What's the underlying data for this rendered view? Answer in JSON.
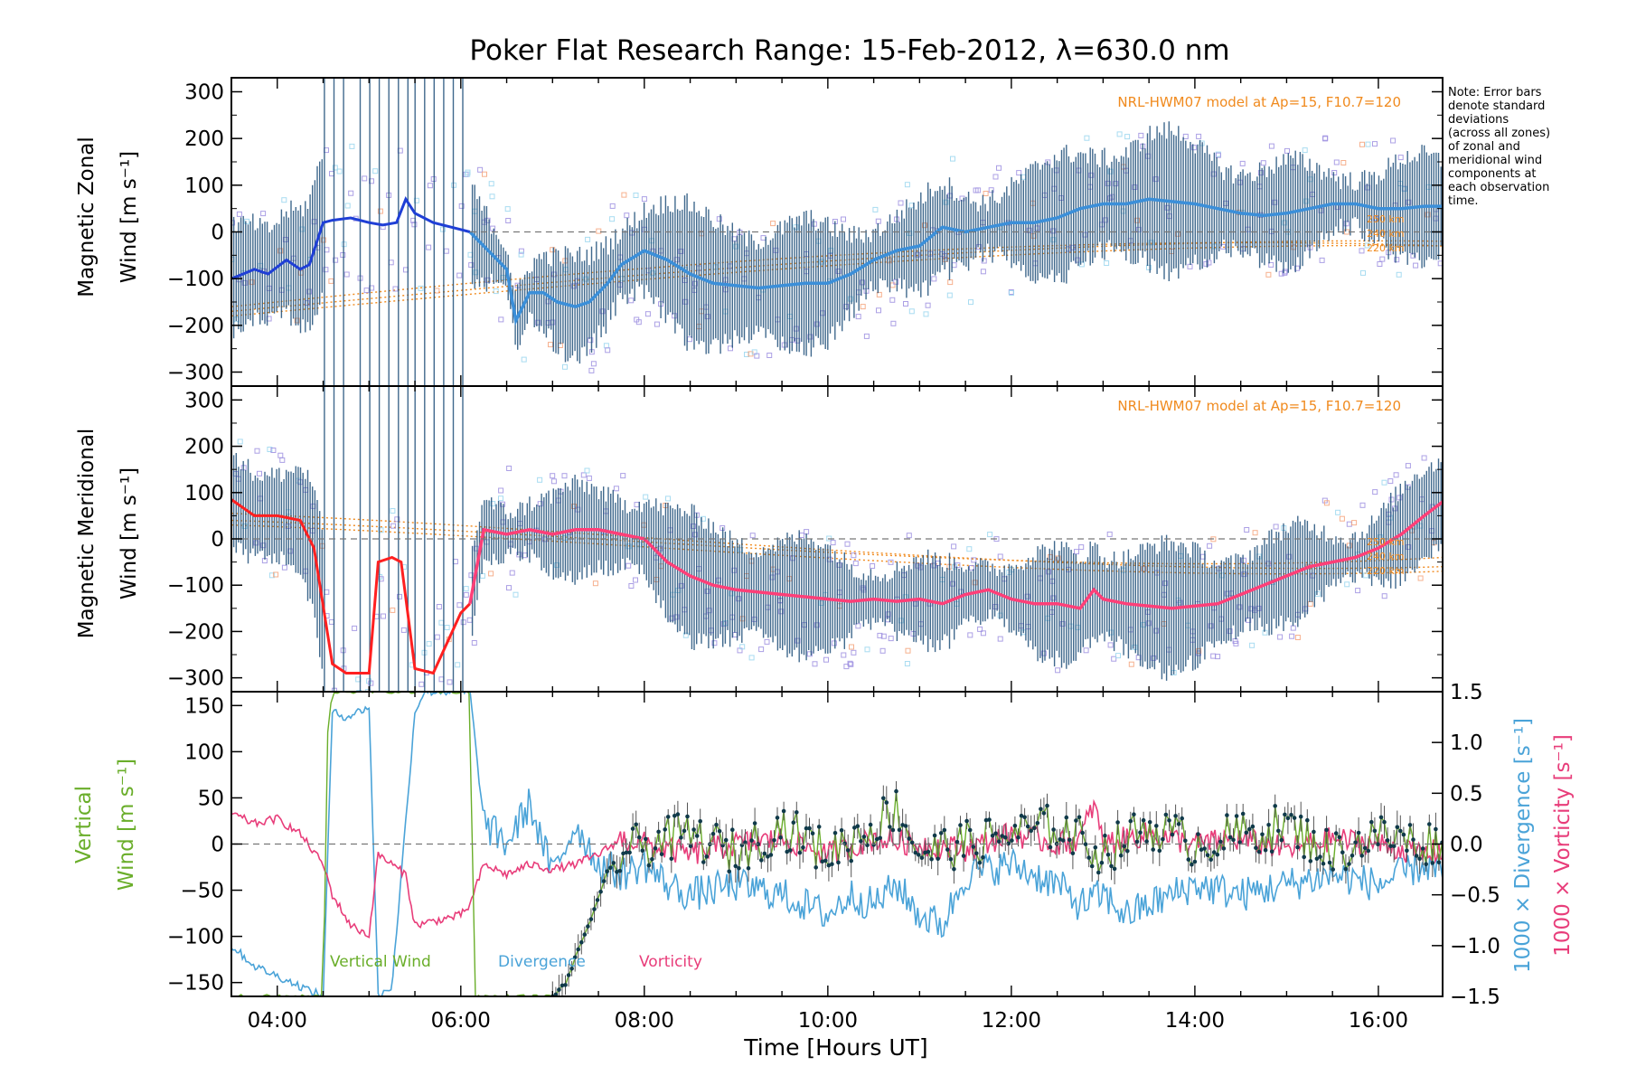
{
  "title": "Poker Flat Research Range: 15-Feb-2012, λ=630.0 nm",
  "note_lines": [
    "Note: Error bars",
    "denote standard",
    "deviations",
    "(across all zones)",
    "of zonal and",
    "meridional wind",
    "components at",
    "each observation",
    "time."
  ],
  "colors": {
    "zonal": "#3b8fd9",
    "zonal_early": "#1f3fd6",
    "meridional": "#ff3f78",
    "meridional_early": "#ff2020",
    "errorbar": "#1f4f7a",
    "scatter": "#9d8fe0",
    "model": "#f08a1e",
    "vertical": "#6aae2a",
    "divergence": "#4aa3d8",
    "vorticity": "#e83d7a"
  },
  "chart_data": [
    {
      "type": "line",
      "name": "zonal",
      "ylabel": [
        "Magnetic Zonal",
        "Wind [m s⁻¹]"
      ],
      "ylim": [
        -330,
        330
      ],
      "yticks": [
        -300,
        -200,
        -100,
        0,
        100,
        200,
        300
      ],
      "xlim": [
        3.5,
        16.7
      ],
      "model_label": "NRL-HWM07 model at Ap=15, F10.7=120",
      "model_heights": [
        "250 km",
        "240 km",
        "220 km"
      ],
      "x": [
        3.5,
        3.75,
        3.9,
        4.1,
        4.25,
        4.35,
        4.5,
        4.6,
        4.8,
        5.0,
        5.15,
        5.3,
        5.4,
        5.5,
        5.7,
        5.9,
        6.1,
        6.3,
        6.5,
        6.6,
        6.75,
        6.9,
        7.05,
        7.25,
        7.4,
        7.6,
        7.75,
        8.0,
        8.25,
        8.5,
        8.75,
        9.0,
        9.25,
        9.5,
        9.75,
        10.0,
        10.25,
        10.5,
        10.75,
        11.0,
        11.25,
        11.5,
        11.75,
        12.0,
        12.25,
        12.5,
        12.75,
        13.0,
        13.25,
        13.5,
        13.75,
        14.0,
        14.25,
        14.5,
        14.75,
        15.0,
        15.25,
        15.5,
        15.75,
        16.0,
        16.25,
        16.5,
        16.7
      ],
      "values": [
        -100,
        -80,
        -90,
        -60,
        -80,
        -70,
        20,
        25,
        30,
        20,
        15,
        20,
        70,
        40,
        20,
        10,
        0,
        -40,
        -80,
        -190,
        -130,
        -130,
        -150,
        -160,
        -150,
        -110,
        -70,
        -40,
        -60,
        -90,
        -110,
        -115,
        -120,
        -115,
        -110,
        -110,
        -90,
        -60,
        -40,
        -30,
        10,
        0,
        10,
        20,
        20,
        30,
        50,
        60,
        60,
        70,
        65,
        60,
        50,
        40,
        35,
        40,
        50,
        60,
        60,
        50,
        50,
        55,
        55
      ],
      "spread": 130
    },
    {
      "type": "line",
      "name": "meridional",
      "ylabel": [
        "Magnetic Meridional",
        "Wind [m s⁻¹]"
      ],
      "ylim": [
        -330,
        330
      ],
      "yticks": [
        -300,
        -200,
        -100,
        0,
        100,
        200,
        300
      ],
      "xlim": [
        3.5,
        16.7
      ],
      "model_label": "NRL-HWM07 model at Ap=15, F10.7=120",
      "model_heights": [
        "250 km",
        "240 km",
        "220 km"
      ],
      "x": [
        3.5,
        3.75,
        4.0,
        4.25,
        4.4,
        4.6,
        4.75,
        5.0,
        5.1,
        5.25,
        5.35,
        5.5,
        5.7,
        6.0,
        6.1,
        6.25,
        6.5,
        6.75,
        7.0,
        7.25,
        7.5,
        7.75,
        8.0,
        8.25,
        8.5,
        8.75,
        9.0,
        9.25,
        9.5,
        9.75,
        10.0,
        10.25,
        10.5,
        10.75,
        11.0,
        11.25,
        11.5,
        11.75,
        12.0,
        12.25,
        12.5,
        12.75,
        12.9,
        13.0,
        13.25,
        13.5,
        13.75,
        14.0,
        14.25,
        14.5,
        14.75,
        15.0,
        15.25,
        15.5,
        15.75,
        16.0,
        16.25,
        16.5,
        16.7
      ],
      "values": [
        85,
        50,
        50,
        40,
        -20,
        -270,
        -290,
        -290,
        -50,
        -40,
        -50,
        -280,
        -290,
        -160,
        -140,
        20,
        10,
        20,
        10,
        20,
        20,
        10,
        0,
        -50,
        -80,
        -100,
        -110,
        -115,
        -120,
        -125,
        -130,
        -135,
        -130,
        -135,
        -130,
        -140,
        -120,
        -110,
        -130,
        -140,
        -140,
        -150,
        -110,
        -130,
        -140,
        -145,
        -150,
        -145,
        -140,
        -120,
        -100,
        -80,
        -60,
        -50,
        -40,
        -20,
        10,
        50,
        80
      ],
      "spread": 120
    },
    {
      "type": "line",
      "name": "kinematics",
      "ylabel": [
        "Vertical",
        "Wind [m s⁻¹]"
      ],
      "ylim": [
        -165,
        165
      ],
      "yticks": [
        -150,
        -100,
        -50,
        0,
        50,
        100,
        150
      ],
      "y2label_div": "1000 × Divergence [s⁻¹]",
      "y2label_vor": "1000 × Vorticity [s⁻¹]",
      "y2ticks": [
        "1.5",
        "1.0",
        "0.5",
        "0.0",
        "−0.5",
        "−1.0",
        "−1.5"
      ],
      "xlim": [
        3.5,
        16.7
      ],
      "xlabel": "Time [Hours UT]",
      "xticks": [
        "04:00",
        "06:00",
        "08:00",
        "10:00",
        "12:00",
        "14:00",
        "16:00"
      ],
      "series_labels": [
        "Vertical Wind",
        "Divergence",
        "Vorticity"
      ],
      "vertical": {
        "x": [
          4.5,
          4.55,
          4.6,
          4.7,
          4.85,
          5.0,
          5.1,
          5.4,
          5.5,
          5.75,
          6.0,
          6.1,
          6.15,
          7.0,
          7.15,
          7.3,
          7.5,
          7.6,
          7.75,
          8.0,
          8.5,
          9.0,
          9.5,
          10.0,
          10.5,
          10.75,
          11.0,
          11.5,
          12.0,
          12.5,
          13.0,
          13.5,
          14.0,
          14.5,
          15.0,
          15.5,
          16.0,
          16.5,
          16.7
        ],
        "values": [
          -165,
          120,
          165,
          165,
          165,
          165,
          165,
          165,
          165,
          165,
          165,
          165,
          -165,
          -165,
          -150,
          -110,
          -60,
          -30,
          -10,
          0,
          10,
          -10,
          20,
          -10,
          20,
          40,
          -10,
          0,
          10,
          20,
          -10,
          20,
          0,
          10,
          20,
          -10,
          10,
          0,
          5
        ]
      },
      "divergence": {
        "x": [
          3.5,
          3.75,
          4.0,
          4.25,
          4.5,
          4.6,
          4.75,
          5.0,
          5.1,
          5.25,
          5.5,
          5.6,
          5.75,
          6.0,
          6.1,
          6.25,
          6.5,
          6.75,
          7.0,
          7.25,
          7.5,
          7.75,
          8.0,
          8.25,
          8.5,
          9.0,
          9.5,
          10.0,
          10.25,
          10.5,
          10.75,
          11.0,
          11.25,
          11.5,
          12.0,
          12.5,
          12.75,
          13.0,
          13.25,
          13.5,
          14.0,
          14.5,
          15.0,
          15.5,
          16.0,
          16.5,
          16.7
        ],
        "values": [
          -1.0,
          -1.2,
          -1.3,
          -1.4,
          -1.5,
          1.3,
          1.25,
          1.35,
          -1.5,
          -1.4,
          1.3,
          1.5,
          1.5,
          1.5,
          1.5,
          0.2,
          0.0,
          0.4,
          -0.3,
          0.2,
          -0.2,
          -0.3,
          -0.2,
          -0.4,
          -0.5,
          -0.4,
          -0.5,
          -0.7,
          -0.5,
          -0.6,
          -0.4,
          -0.7,
          -0.8,
          -0.3,
          -0.2,
          -0.4,
          -0.6,
          -0.5,
          -0.7,
          -0.6,
          -0.4,
          -0.5,
          -0.4,
          -0.3,
          -0.4,
          -0.2,
          -0.3
        ]
      },
      "vorticity": {
        "x": [
          3.5,
          3.75,
          4.0,
          4.25,
          4.5,
          4.6,
          4.8,
          5.0,
          5.1,
          5.25,
          5.4,
          5.5,
          5.75,
          6.0,
          6.1,
          6.25,
          6.5,
          6.75,
          7.0,
          7.25,
          7.5,
          7.75,
          8.0,
          8.5,
          9.0,
          9.5,
          10.0,
          10.5,
          11.0,
          11.5,
          12.0,
          12.5,
          12.75,
          12.9,
          13.0,
          13.5,
          14.0,
          14.5,
          15.0,
          15.5,
          16.0,
          16.5,
          16.7
        ],
        "values": [
          0.3,
          0.2,
          0.25,
          0.1,
          -0.2,
          -0.5,
          -0.8,
          -0.9,
          -0.1,
          -0.2,
          -0.3,
          -0.8,
          -0.75,
          -0.7,
          -0.6,
          -0.2,
          -0.3,
          -0.2,
          -0.25,
          -0.2,
          -0.1,
          0.05,
          0.0,
          -0.1,
          0.0,
          0.05,
          -0.1,
          0.05,
          0.0,
          -0.05,
          0.1,
          0.0,
          0.05,
          0.4,
          0.0,
          0.1,
          0.0,
          0.05,
          -0.05,
          0.05,
          0.0,
          -0.1,
          -0.05
        ]
      }
    }
  ]
}
